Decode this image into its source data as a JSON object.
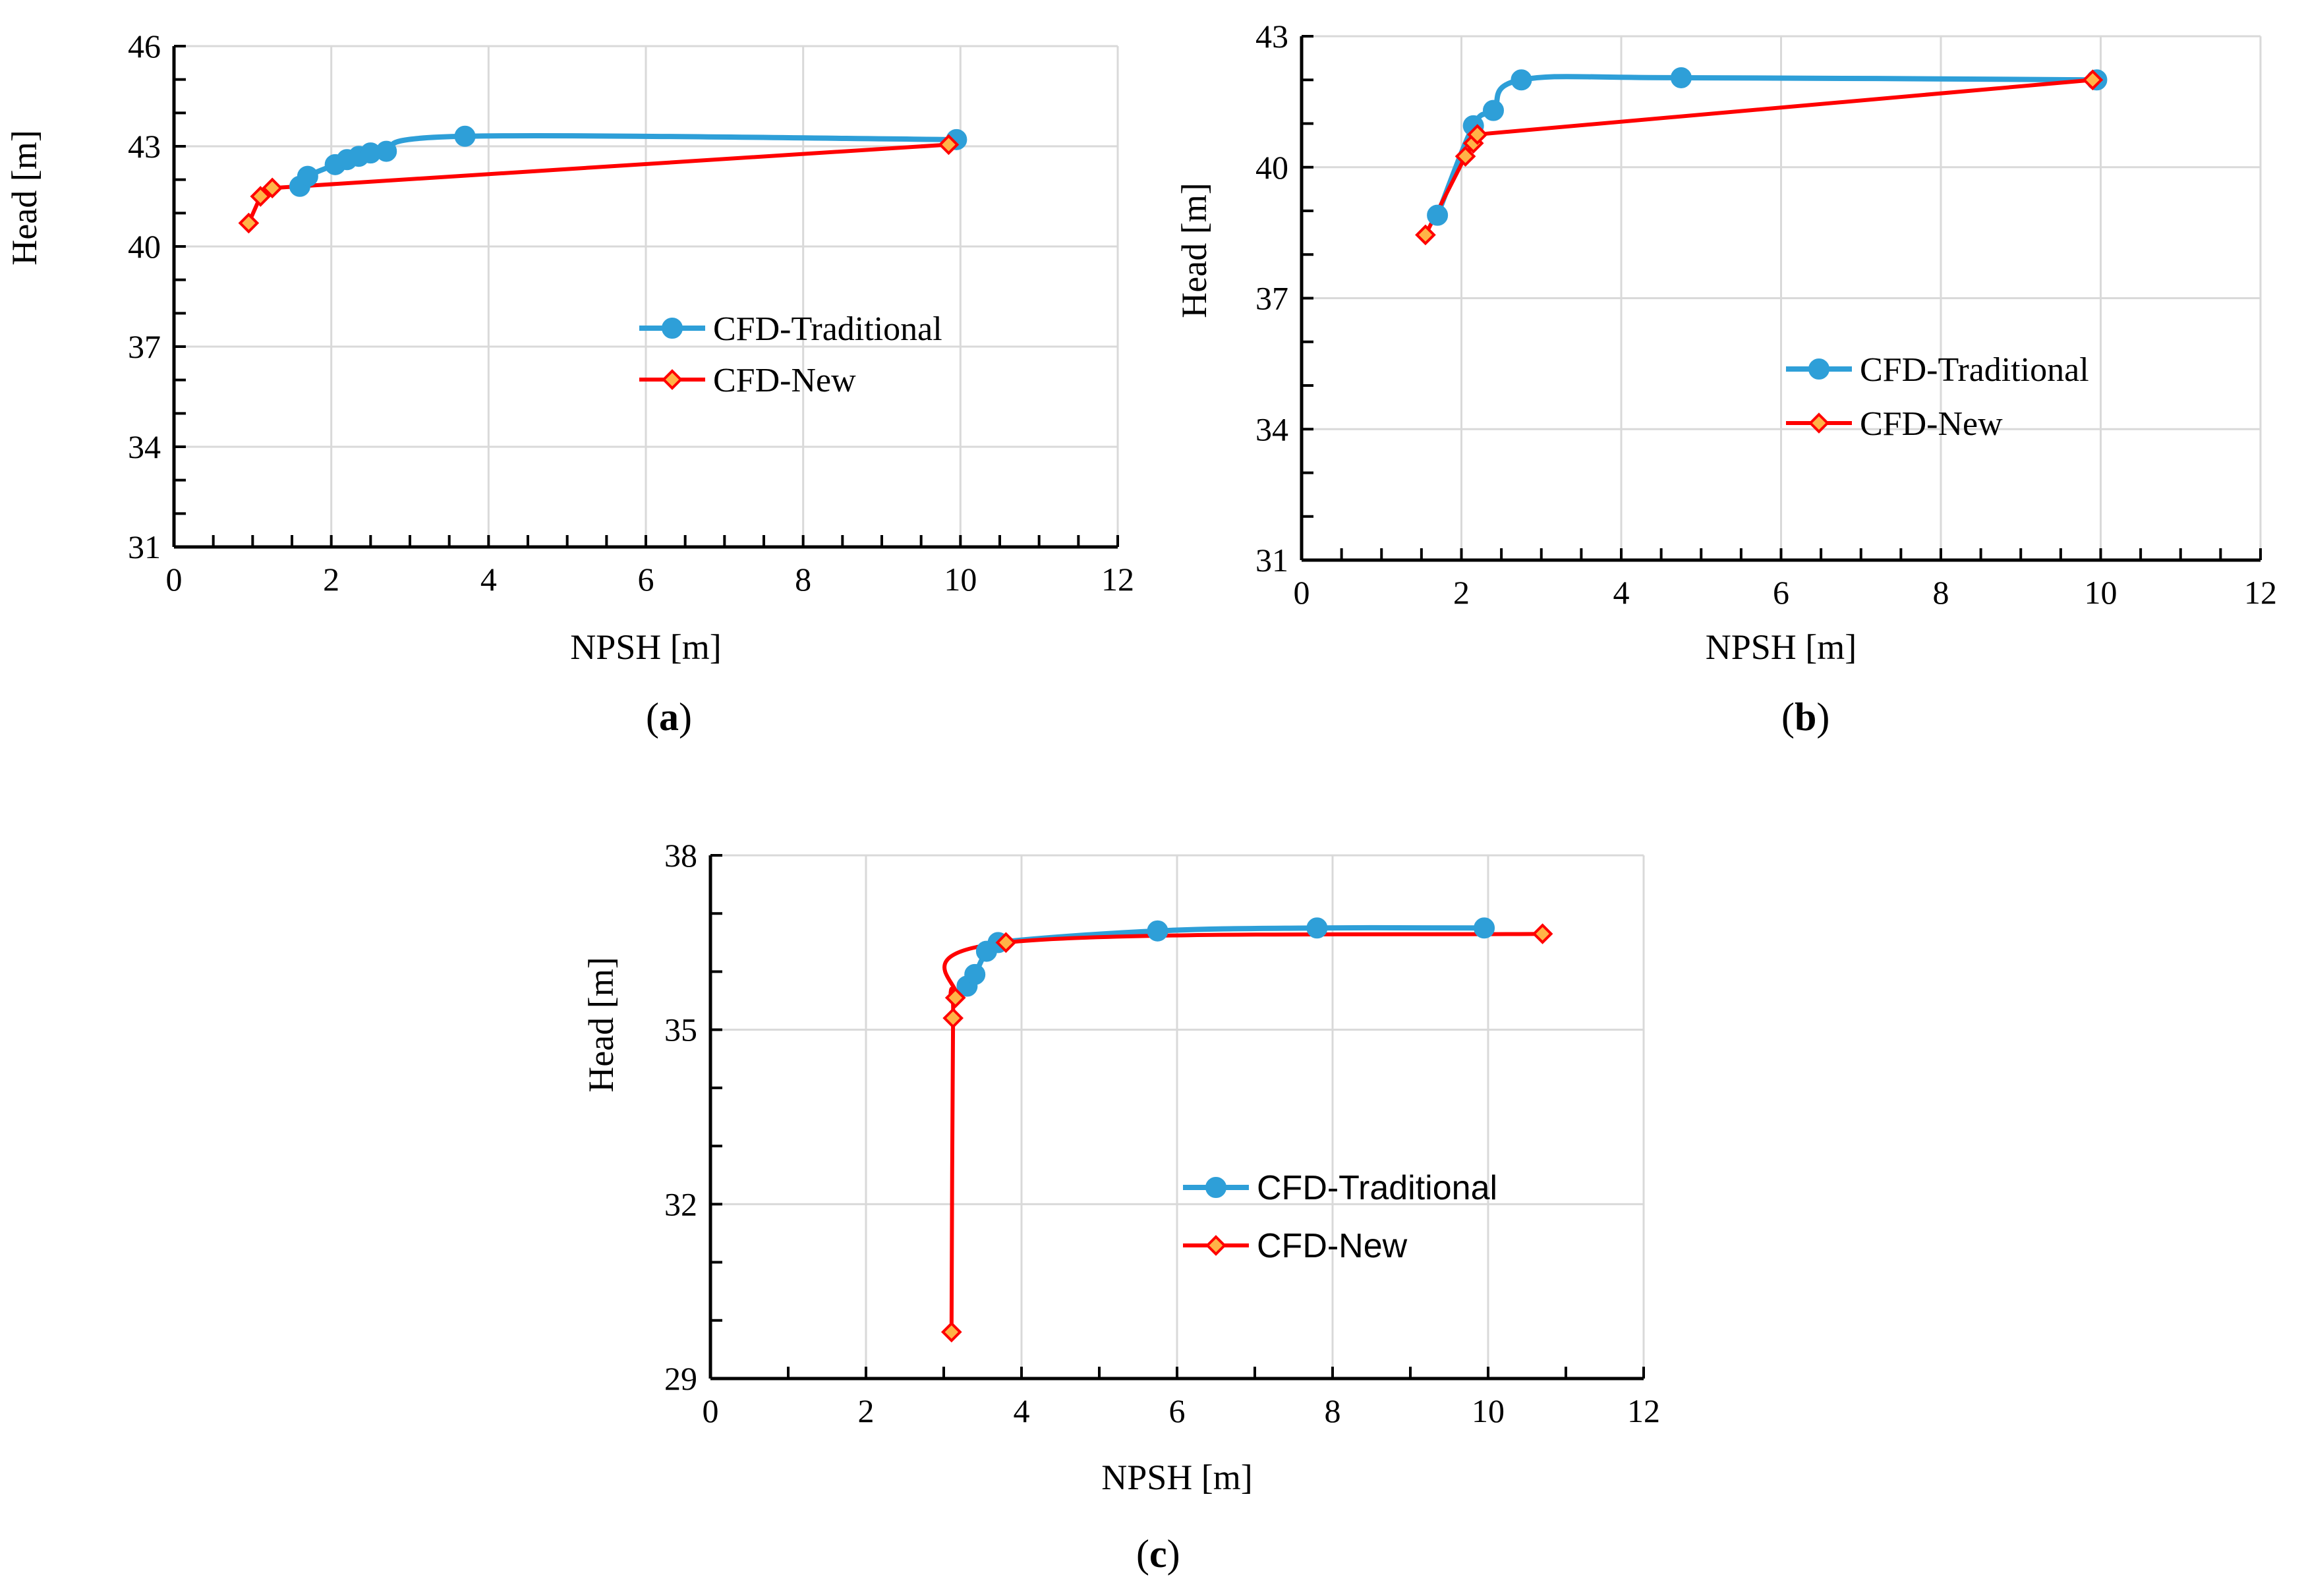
{
  "colors": {
    "traditional": "#2e9fd8",
    "new_line": "#ff0000",
    "new_fill": "#ffb347",
    "grid": "#d9d9d9",
    "axis": "#000000"
  },
  "chart_data": [
    {
      "id": "a",
      "type": "line",
      "panel_label": "a",
      "xlabel": "NPSH [m]",
      "ylabel": "Head [m]",
      "xlim": [
        0,
        12
      ],
      "ylim": [
        31,
        46
      ],
      "x_ticks": [
        0,
        2,
        4,
        6,
        8,
        10,
        12
      ],
      "y_ticks": [
        31,
        34,
        37,
        40,
        43,
        46
      ],
      "y_minor_step": 1,
      "x_minor_step": 0.5,
      "legend_font": "serif",
      "series": [
        {
          "name": "CFD-Traditional",
          "marker": "circle",
          "points": [
            [
              1.6,
              41.8
            ],
            [
              1.7,
              42.1
            ],
            [
              2.05,
              42.45
            ],
            [
              2.2,
              42.6
            ],
            [
              2.35,
              42.7
            ],
            [
              2.5,
              42.8
            ],
            [
              2.7,
              42.85
            ],
            [
              3.7,
              43.3
            ],
            [
              9.95,
              43.2
            ]
          ]
        },
        {
          "name": "CFD-New",
          "marker": "diamond",
          "points": [
            [
              0.95,
              40.7
            ],
            [
              1.1,
              41.5
            ],
            [
              1.25,
              41.75
            ],
            [
              9.85,
              43.05
            ]
          ]
        }
      ]
    },
    {
      "id": "b",
      "type": "line",
      "panel_label": "b",
      "xlabel": "NPSH [m]",
      "ylabel": "Head [m]",
      "xlim": [
        0,
        12
      ],
      "ylim": [
        31,
        43
      ],
      "x_ticks": [
        0,
        2,
        4,
        6,
        8,
        10,
        12
      ],
      "y_ticks": [
        31,
        34,
        37,
        40,
        43
      ],
      "y_minor_step": 1,
      "x_minor_step": 0.5,
      "legend_font": "serif",
      "series": [
        {
          "name": "CFD-Traditional",
          "marker": "circle",
          "points": [
            [
              1.7,
              38.9
            ],
            [
              2.15,
              40.95
            ],
            [
              2.4,
              41.3
            ],
            [
              2.75,
              42.0
            ],
            [
              4.75,
              42.05
            ],
            [
              9.95,
              42.0
            ]
          ]
        },
        {
          "name": "CFD-New",
          "marker": "diamond",
          "points": [
            [
              1.55,
              38.45
            ],
            [
              2.05,
              40.25
            ],
            [
              2.15,
              40.55
            ],
            [
              2.2,
              40.75
            ],
            [
              9.9,
              42.0
            ]
          ]
        }
      ]
    },
    {
      "id": "c",
      "type": "line",
      "panel_label": "c",
      "xlabel": "NPSH [m]",
      "ylabel": "Head [m]",
      "xlim": [
        0,
        12
      ],
      "ylim": [
        29,
        38
      ],
      "x_ticks": [
        0,
        2,
        4,
        6,
        8,
        10,
        12
      ],
      "y_ticks": [
        29,
        32,
        35,
        38
      ],
      "y_minor_step": 1,
      "x_minor_step": 1,
      "legend_font": "sans",
      "series": [
        {
          "name": "CFD-Traditional",
          "marker": "circle",
          "points": [
            [
              3.3,
              35.75
            ],
            [
              3.4,
              35.95
            ],
            [
              3.55,
              36.35
            ],
            [
              3.7,
              36.5
            ],
            [
              5.75,
              36.7
            ],
            [
              7.8,
              36.75
            ],
            [
              9.95,
              36.75
            ]
          ]
        },
        {
          "name": "CFD-New",
          "marker": "diamond",
          "points": [
            [
              3.1,
              29.8
            ],
            [
              3.12,
              35.2
            ],
            [
              3.15,
              35.55
            ],
            [
              3.8,
              36.5
            ],
            [
              10.7,
              36.65
            ]
          ]
        }
      ]
    }
  ]
}
